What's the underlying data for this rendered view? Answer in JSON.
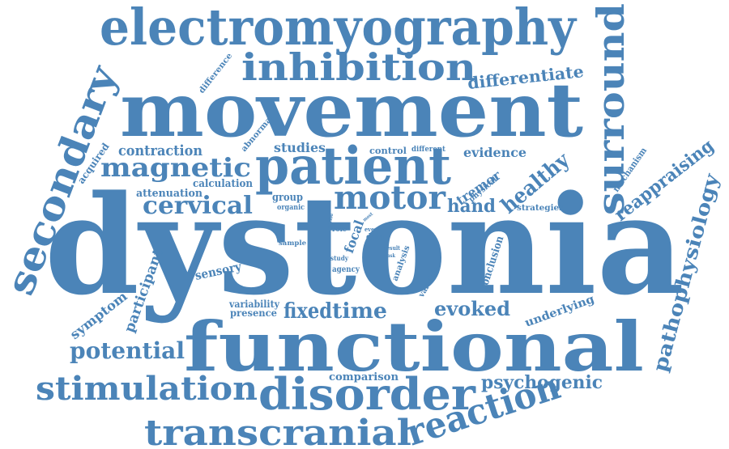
{
  "color": "#4b84b8",
  "words": [
    "dystonia",
    "movement",
    "functional",
    "electromyography",
    "patient",
    "secondary",
    "surround",
    "inhibition",
    "disorder",
    "transcranial",
    "stimulation",
    "reaction",
    "motor",
    "magnetic",
    "cervical",
    "potential",
    "pathophysiology",
    "reappraising",
    "healthy",
    "differentiate",
    "evoked",
    "time",
    "fixed",
    "psychogenic",
    "hand",
    "contraction",
    "studies",
    "tremor",
    "evidence",
    "participant",
    "symptom",
    "sensory",
    "comparison",
    "underlying",
    "calculation",
    "attenuation",
    "acquired",
    "difference",
    "abnormal",
    "control",
    "different",
    "mechanism",
    "strategies",
    "group",
    "organic",
    "variability",
    "presence",
    "focal",
    "data",
    "analysis",
    "conclusion",
    "variable",
    "physical",
    "agency",
    "role",
    "study",
    "event",
    "sample",
    "result",
    "task",
    "most",
    "period"
  ]
}
